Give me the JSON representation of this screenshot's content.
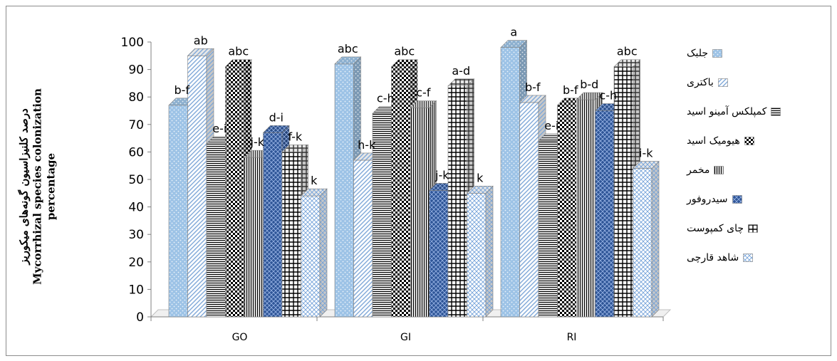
{
  "chart_data": {
    "type": "bar",
    "categories": [
      "GO",
      "GI",
      "RI"
    ],
    "ylabel": [
      "درصد کلنیزاسیون گونه‌های میکوریز",
      "Mycorrhizal species colonization",
      "percentage"
    ],
    "ylim": [
      0,
      100
    ],
    "yticks": [
      "0",
      "10",
      "20",
      "30",
      "40",
      "50",
      "60",
      "70",
      "80",
      "90",
      "100"
    ],
    "grid": false,
    "legend_position": "right",
    "series": [
      {
        "name": "جلبک",
        "values": [
          77,
          92,
          98
        ],
        "letters": [
          "b-f",
          "abc",
          "a"
        ],
        "color": "#9dc3e6",
        "pattern": "dots"
      },
      {
        "name": "باکتری",
        "values": [
          95,
          57,
          78
        ],
        "letters": [
          "ab",
          "h-k",
          "b-f"
        ],
        "color": "#ffffff",
        "pattern": "diag"
      },
      {
        "name": "کمپلکس آمینو اسید",
        "values": [
          63,
          74,
          64
        ],
        "letters": [
          "e-i",
          "c-h",
          "e-i"
        ],
        "color": "#ffffff",
        "pattern": "hlines"
      },
      {
        "name": "هیومیک اسید",
        "values": [
          91,
          91,
          77
        ],
        "letters": [
          "abc",
          "abc",
          "b-f"
        ],
        "color": "#ffffff",
        "pattern": "checker"
      },
      {
        "name": "مخمر",
        "values": [
          58,
          76,
          79
        ],
        "letters": [
          "j-k",
          "c-f",
          "b-d"
        ],
        "color": "#ffffff",
        "pattern": "vlines"
      },
      {
        "name": "سیدروفور",
        "values": [
          67,
          46,
          75
        ],
        "letters": [
          "d-i",
          "j-k",
          "c-h"
        ],
        "color": "#2e5597",
        "pattern": "diamond"
      },
      {
        "name": "چای کمپوست",
        "values": [
          60,
          84,
          91
        ],
        "letters": [
          "f-k",
          "a-d",
          "abc"
        ],
        "color": "#ffffff",
        "pattern": "grid"
      },
      {
        "name": "شاهد قارچی",
        "values": [
          44,
          45,
          54
        ],
        "letters": [
          "k",
          "k",
          "i-k"
        ],
        "color": "#ffffff",
        "pattern": "xhatch"
      }
    ]
  }
}
